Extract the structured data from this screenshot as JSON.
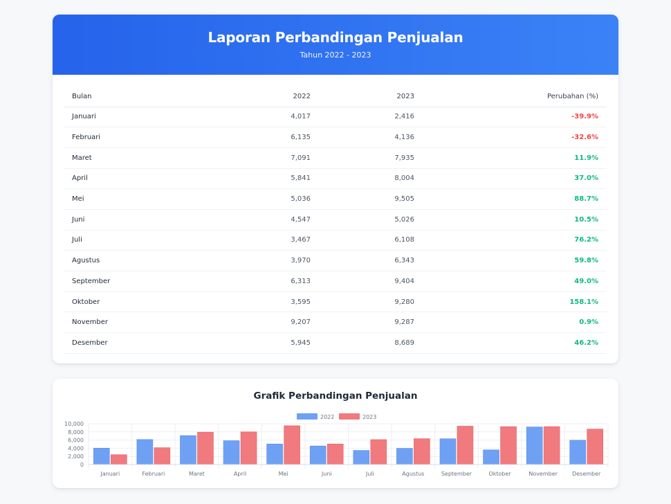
{
  "report": {
    "title": "Laporan Perbandingan Penjualan",
    "subtitle": "Tahun 2022 - 2023",
    "columns": [
      "Bulan",
      "2022",
      "2023",
      "Perubahan (%)"
    ],
    "rows": [
      {
        "month": "Januari",
        "y2022": "4,017",
        "y2023": "2,416",
        "change": "-39.9%",
        "trend": "neg"
      },
      {
        "month": "Februari",
        "y2022": "6,135",
        "y2023": "4,136",
        "change": "-32.6%",
        "trend": "neg"
      },
      {
        "month": "Maret",
        "y2022": "7,091",
        "y2023": "7,935",
        "change": "11.9%",
        "trend": "pos"
      },
      {
        "month": "April",
        "y2022": "5,841",
        "y2023": "8,004",
        "change": "37.0%",
        "trend": "pos"
      },
      {
        "month": "Mei",
        "y2022": "5,036",
        "y2023": "9,505",
        "change": "88.7%",
        "trend": "pos"
      },
      {
        "month": "Juni",
        "y2022": "4,547",
        "y2023": "5,026",
        "change": "10.5%",
        "trend": "pos"
      },
      {
        "month": "Juli",
        "y2022": "3,467",
        "y2023": "6,108",
        "change": "76.2%",
        "trend": "pos"
      },
      {
        "month": "Agustus",
        "y2022": "3,970",
        "y2023": "6,343",
        "change": "59.8%",
        "trend": "pos"
      },
      {
        "month": "September",
        "y2022": "6,313",
        "y2023": "9,404",
        "change": "49.0%",
        "trend": "pos"
      },
      {
        "month": "Oktober",
        "y2022": "3,595",
        "y2023": "9,280",
        "change": "158.1%",
        "trend": "pos"
      },
      {
        "month": "November",
        "y2022": "9,207",
        "y2023": "9,287",
        "change": "0.9%",
        "trend": "pos"
      },
      {
        "month": "Desember",
        "y2022": "5,945",
        "y2023": "8,689",
        "change": "46.2%",
        "trend": "pos"
      }
    ]
  },
  "colors": {
    "header_start": "#2563eb",
    "header_end": "#3b82f6",
    "negative": "#ef4444",
    "positive": "#10b981",
    "series_2022": "#6ea1f4",
    "series_2023": "#f07a7e"
  },
  "chart_data": {
    "type": "bar",
    "title": "Grafik Perbandingan Penjualan",
    "categories": [
      "Januari",
      "Februari",
      "Maret",
      "April",
      "Mei",
      "Juni",
      "Juli",
      "Agustus",
      "September",
      "Oktober",
      "November",
      "Desember"
    ],
    "series": [
      {
        "name": "2022",
        "values": [
          4017,
          6135,
          7091,
          5841,
          5036,
          4547,
          3467,
          3970,
          6313,
          3595,
          9207,
          5945
        ]
      },
      {
        "name": "2023",
        "values": [
          2416,
          4136,
          7935,
          8004,
          9505,
          5026,
          6108,
          6343,
          9404,
          9280,
          9287,
          8689
        ]
      }
    ],
    "ylim": [
      0,
      10000
    ],
    "yticks": [
      "0",
      "2,000",
      "4,000",
      "6,000",
      "8,000",
      "10,000"
    ],
    "legend_position": "top-center",
    "grid": true
  }
}
